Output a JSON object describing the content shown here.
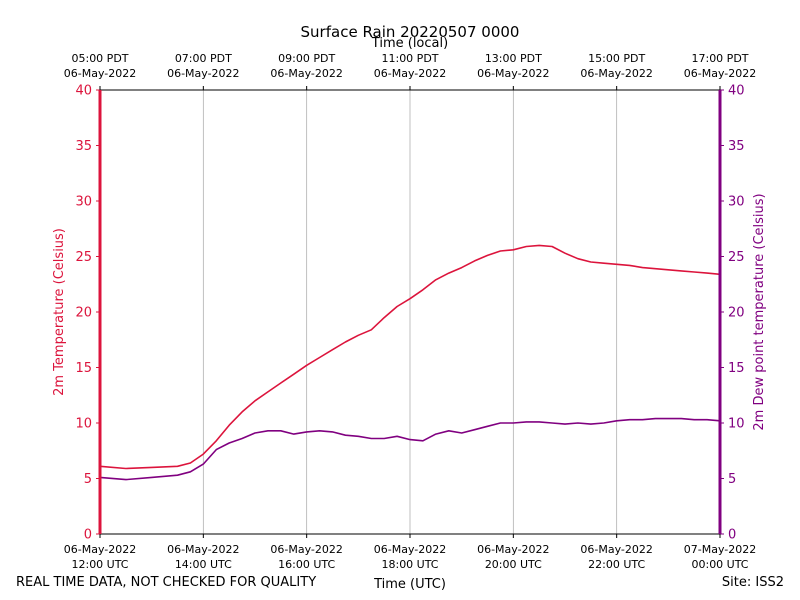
{
  "chart_data": {
    "type": "line",
    "title": "Surface Rain 20220507 0000",
    "top_axis_label": "Time (local)",
    "xlabel": "Time (UTC)",
    "ylabel_left": "2m Temperature (Celsius)",
    "ylabel_right": "2m Dew point temperature (Celsius)",
    "ylim": [
      0,
      40
    ],
    "yticks": [
      0,
      5,
      10,
      15,
      20,
      25,
      30,
      35,
      40
    ],
    "xlim_hours_utc": [
      12,
      24
    ],
    "grid": "vertical",
    "x_ticks_utc": [
      {
        "line1": "06-May-2022",
        "line2": "12:00 UTC"
      },
      {
        "line1": "06-May-2022",
        "line2": "14:00 UTC"
      },
      {
        "line1": "06-May-2022",
        "line2": "16:00 UTC"
      },
      {
        "line1": "06-May-2022",
        "line2": "18:00 UTC"
      },
      {
        "line1": "06-May-2022",
        "line2": "20:00 UTC"
      },
      {
        "line1": "06-May-2022",
        "line2": "22:00 UTC"
      },
      {
        "line1": "07-May-2022",
        "line2": "00:00 UTC"
      }
    ],
    "x_ticks_local": [
      {
        "line1": "05:00 PDT",
        "line2": "06-May-2022"
      },
      {
        "line1": "07:00 PDT",
        "line2": "06-May-2022"
      },
      {
        "line1": "09:00 PDT",
        "line2": "06-May-2022"
      },
      {
        "line1": "11:00 PDT",
        "line2": "06-May-2022"
      },
      {
        "line1": "13:00 PDT",
        "line2": "06-May-2022"
      },
      {
        "line1": "15:00 PDT",
        "line2": "06-May-2022"
      },
      {
        "line1": "17:00 PDT",
        "line2": "06-May-2022"
      }
    ],
    "series": [
      {
        "name": "2m Temperature",
        "color": "#dc143c",
        "axis": "left",
        "x": [
          12.0,
          12.5,
          13.0,
          13.5,
          13.75,
          14.0,
          14.25,
          14.5,
          14.75,
          15.0,
          15.25,
          15.5,
          15.75,
          16.0,
          16.25,
          16.5,
          16.75,
          17.0,
          17.25,
          17.5,
          17.75,
          18.0,
          18.25,
          18.5,
          18.75,
          19.0,
          19.25,
          19.5,
          19.75,
          20.0,
          20.25,
          20.5,
          20.75,
          21.0,
          21.25,
          21.5,
          21.75,
          22.0,
          22.25,
          22.5,
          22.75,
          23.0,
          23.25,
          23.5,
          23.75,
          24.0
        ],
        "y": [
          6.1,
          5.9,
          6.0,
          6.1,
          6.4,
          7.2,
          8.4,
          9.8,
          11.0,
          12.0,
          12.8,
          13.6,
          14.4,
          15.2,
          15.9,
          16.6,
          17.3,
          17.9,
          18.4,
          19.5,
          20.5,
          21.2,
          22.0,
          22.9,
          23.5,
          24.0,
          24.6,
          25.1,
          25.5,
          25.6,
          25.9,
          26.0,
          25.9,
          25.3,
          24.8,
          24.5,
          24.4,
          24.3,
          24.2,
          24.0,
          23.9,
          23.8,
          23.7,
          23.6,
          23.5,
          23.4
        ]
      },
      {
        "name": "2m Dew point temperature",
        "color": "#800080",
        "axis": "right",
        "x": [
          12.0,
          12.5,
          13.0,
          13.5,
          13.75,
          14.0,
          14.25,
          14.5,
          14.75,
          15.0,
          15.25,
          15.5,
          15.75,
          16.0,
          16.25,
          16.5,
          16.75,
          17.0,
          17.25,
          17.5,
          17.75,
          18.0,
          18.25,
          18.5,
          18.75,
          19.0,
          19.25,
          19.5,
          19.75,
          20.0,
          20.25,
          20.5,
          20.75,
          21.0,
          21.25,
          21.5,
          21.75,
          22.0,
          22.25,
          22.5,
          22.75,
          23.0,
          23.25,
          23.5,
          23.75,
          24.0
        ],
        "y": [
          5.1,
          4.9,
          5.1,
          5.3,
          5.6,
          6.3,
          7.6,
          8.2,
          8.6,
          9.1,
          9.3,
          9.3,
          9.0,
          9.2,
          9.3,
          9.2,
          8.9,
          8.8,
          8.6,
          8.6,
          8.8,
          8.5,
          8.4,
          9.0,
          9.3,
          9.1,
          9.4,
          9.7,
          10.0,
          10.0,
          10.1,
          10.1,
          10.0,
          9.9,
          10.0,
          9.9,
          10.0,
          10.2,
          10.3,
          10.3,
          10.4,
          10.4,
          10.4,
          10.3,
          10.3,
          10.2
        ]
      }
    ]
  },
  "footer": {
    "disclaimer": "REAL TIME DATA, NOT CHECKED FOR QUALITY",
    "site": "Site: ISS2"
  }
}
